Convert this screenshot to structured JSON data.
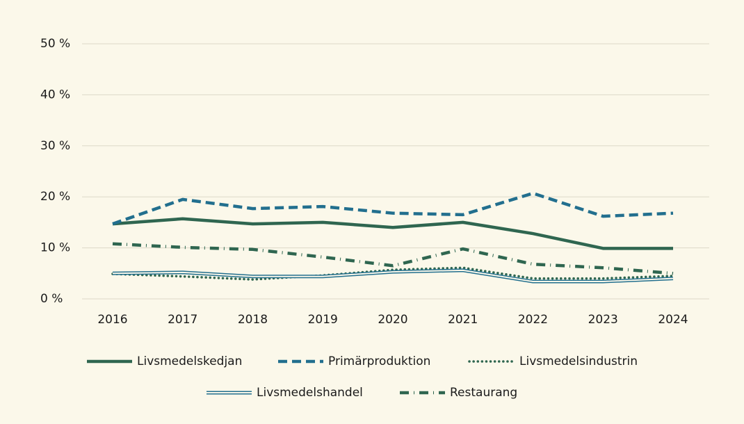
{
  "chart_data": {
    "type": "line",
    "categories": [
      "2016",
      "2017",
      "2018",
      "2019",
      "2020",
      "2021",
      "2022",
      "2023",
      "2024"
    ],
    "series": [
      {
        "name": "Livsmedelskedjan",
        "color": "#2f6650",
        "style": "solid",
        "values": [
          14.7,
          15.7,
          14.7,
          15.0,
          14.0,
          15.0,
          12.8,
          9.9,
          9.9
        ]
      },
      {
        "name": "Primärproduktion",
        "color": "#226f8e",
        "style": "dashed",
        "values": [
          14.7,
          19.5,
          17.7,
          18.1,
          16.8,
          16.5,
          20.7,
          16.2,
          16.8
        ]
      },
      {
        "name": "Livsmedelsindustrin",
        "color": "#2f6650",
        "style": "dotted",
        "values": [
          4.9,
          4.4,
          3.8,
          4.6,
          5.7,
          6.1,
          4.0,
          4.0,
          4.5
        ]
      },
      {
        "name": "Livsmedelshandel",
        "color": "#226f8e",
        "style": "double",
        "values": [
          5.0,
          5.2,
          4.4,
          4.4,
          5.3,
          5.6,
          3.4,
          3.4,
          4.0
        ]
      },
      {
        "name": "Restaurang",
        "color": "#2f6650",
        "style": "dashdot",
        "values": [
          10.8,
          10.1,
          9.7,
          8.2,
          6.5,
          9.8,
          6.8,
          6.1,
          5.0
        ]
      }
    ],
    "ylim": [
      0,
      50
    ],
    "yticks": [
      {
        "value": 0,
        "label": "0 %"
      },
      {
        "value": 10,
        "label": "10 %"
      },
      {
        "value": 20,
        "label": "20 %"
      },
      {
        "value": 30,
        "label": "30 %"
      },
      {
        "value": 40,
        "label": "40 %"
      },
      {
        "value": 50,
        "label": "50 %"
      }
    ],
    "grid": true
  }
}
